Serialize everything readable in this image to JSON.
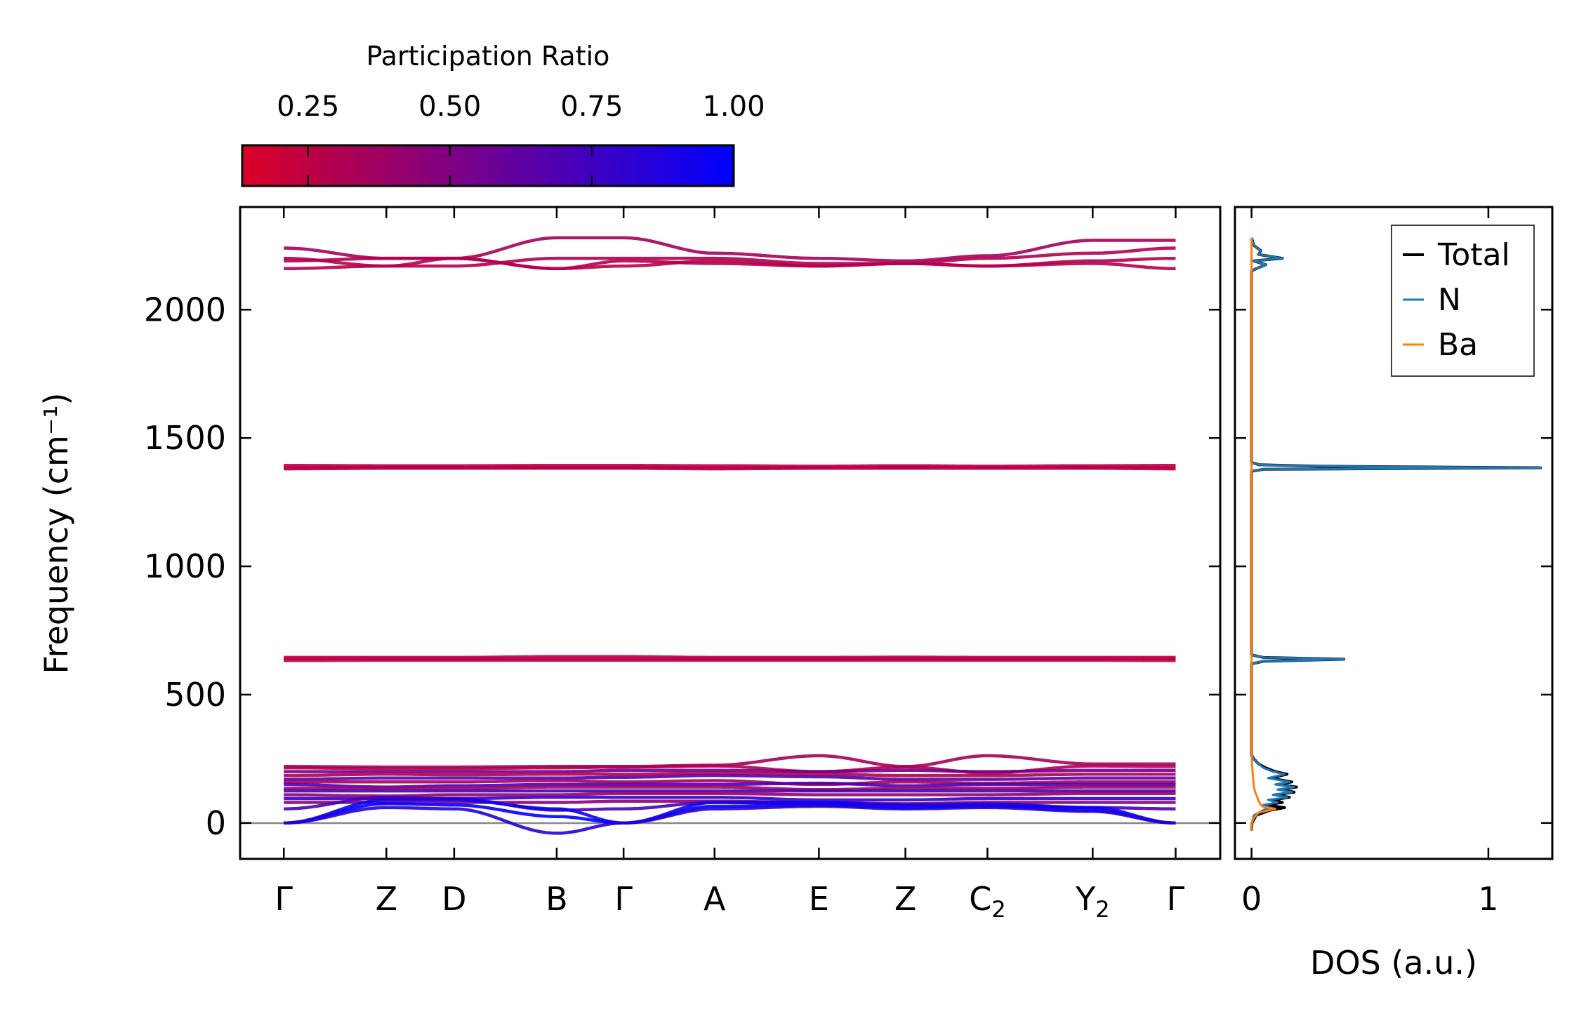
{
  "chart_data": [
    {
      "type": "line",
      "title": "",
      "xlabel": "",
      "ylabel": "Frequency (cm⁻¹)",
      "ylim": [
        -140,
        2400
      ],
      "xlim": [
        -0.049,
        1.05
      ],
      "yticks": [
        0,
        500,
        1000,
        1500,
        2000
      ],
      "ytick_labels": [
        "0",
        "500",
        "1000",
        "1500",
        "2000"
      ],
      "kpoints": [
        {
          "label": "Γ",
          "sub": "",
          "x": 0.0
        },
        {
          "label": "Z",
          "sub": "",
          "x": 0.115
        },
        {
          "label": "D",
          "sub": "",
          "x": 0.191
        },
        {
          "label": "B",
          "sub": "",
          "x": 0.306
        },
        {
          "label": "Γ",
          "sub": "",
          "x": 0.381
        },
        {
          "label": "A",
          "sub": "",
          "x": 0.483
        },
        {
          "label": "E",
          "sub": "",
          "x": 0.6
        },
        {
          "label": "Z",
          "sub": "",
          "x": 0.697
        },
        {
          "label": "C",
          "sub": "2",
          "x": 0.789
        },
        {
          "label": "Y",
          "sub": "2",
          "x": 0.907
        },
        {
          "label": "Γ",
          "sub": "",
          "x": 1.0
        }
      ],
      "colorbar": {
        "label": "Participation Ratio",
        "range": [
          0.134,
          1.0
        ],
        "ticks": [
          0.25,
          0.5,
          0.75,
          1.0
        ],
        "tick_labels": [
          "0.25",
          "0.50",
          "0.75",
          "1.00"
        ],
        "color_low": "#dc0026",
        "color_high": "#0000ff"
      },
      "bands": [
        {
          "pr": 0.35,
          "freq": [
            2240,
            2200,
            2200,
            2280,
            2280,
            2220,
            2200,
            2190,
            2210,
            2270,
            2270
          ]
        },
        {
          "pr": 0.3,
          "freq": [
            2200,
            2170,
            2170,
            2200,
            2200,
            2200,
            2180,
            2180,
            2200,
            2220,
            2240
          ]
        },
        {
          "pr": 0.3,
          "freq": [
            2190,
            2200,
            2200,
            2160,
            2190,
            2180,
            2170,
            2180,
            2170,
            2190,
            2200
          ]
        },
        {
          "pr": 0.28,
          "freq": [
            2160,
            2170,
            2200,
            2160,
            2170,
            2190,
            2170,
            2180,
            2170,
            2180,
            2160
          ]
        },
        {
          "pr": 0.25,
          "freq": [
            1393,
            1392,
            1392,
            1393,
            1393,
            1392,
            1390,
            1392,
            1390,
            1392,
            1393
          ]
        },
        {
          "pr": 0.22,
          "freq": [
            1385,
            1386,
            1386,
            1386,
            1386,
            1384,
            1385,
            1386,
            1385,
            1386,
            1385
          ]
        },
        {
          "pr": 0.3,
          "freq": [
            1380,
            1382,
            1382,
            1382,
            1382,
            1380,
            1382,
            1382,
            1382,
            1382,
            1380
          ]
        },
        {
          "pr": 0.25,
          "freq": [
            645,
            645,
            645,
            648,
            648,
            645,
            645,
            646,
            645,
            645,
            645
          ]
        },
        {
          "pr": 0.22,
          "freq": [
            640,
            640,
            640,
            640,
            640,
            640,
            640,
            640,
            640,
            640,
            640
          ]
        },
        {
          "pr": 0.3,
          "freq": [
            633,
            634,
            634,
            634,
            634,
            634,
            634,
            634,
            634,
            634,
            633
          ]
        },
        {
          "pr": 0.35,
          "freq": [
            220,
            218,
            218,
            220,
            220,
            225,
            262,
            220,
            262,
            230,
            230
          ]
        },
        {
          "pr": 0.3,
          "freq": [
            215,
            212,
            212,
            215,
            218,
            222,
            200,
            218,
            195,
            222,
            220
          ]
        },
        {
          "pr": 0.55,
          "freq": [
            200,
            200,
            200,
            200,
            205,
            205,
            200,
            205,
            200,
            205,
            205
          ]
        },
        {
          "pr": 0.3,
          "freq": [
            185,
            190,
            188,
            190,
            190,
            195,
            190,
            185,
            185,
            190,
            190
          ]
        },
        {
          "pr": 0.65,
          "freq": [
            170,
            175,
            175,
            175,
            178,
            185,
            180,
            170,
            170,
            175,
            175
          ]
        },
        {
          "pr": 0.35,
          "freq": [
            160,
            160,
            160,
            165,
            160,
            165,
            150,
            160,
            155,
            160,
            160
          ]
        },
        {
          "pr": 0.7,
          "freq": [
            150,
            140,
            145,
            150,
            150,
            150,
            155,
            145,
            150,
            150,
            150
          ]
        },
        {
          "pr": 0.35,
          "freq": [
            135,
            135,
            135,
            140,
            140,
            140,
            130,
            135,
            135,
            140,
            140
          ]
        },
        {
          "pr": 0.75,
          "freq": [
            125,
            125,
            125,
            125,
            125,
            125,
            125,
            125,
            125,
            125,
            125
          ]
        },
        {
          "pr": 0.4,
          "freq": [
            110,
            105,
            110,
            110,
            115,
            115,
            110,
            110,
            110,
            115,
            115
          ]
        },
        {
          "pr": 0.8,
          "freq": [
            95,
            95,
            95,
            100,
            100,
            100,
            90,
            90,
            95,
            95,
            95
          ]
        },
        {
          "pr": 0.45,
          "freq": [
            80,
            80,
            80,
            80,
            85,
            85,
            80,
            75,
            80,
            80,
            80
          ]
        },
        {
          "pr": 0.7,
          "freq": [
            55,
            100,
            95,
            50,
            55,
            80,
            75,
            70,
            75,
            60,
            55
          ]
        },
        {
          "pr": 0.95,
          "freq": [
            0,
            90,
            90,
            55,
            0,
            80,
            80,
            70,
            70,
            60,
            0
          ]
        },
        {
          "pr": 1.0,
          "freq": [
            0,
            75,
            70,
            25,
            0,
            65,
            70,
            60,
            65,
            50,
            0
          ]
        },
        {
          "pr": 0.85,
          "freq": [
            0,
            60,
            55,
            -40,
            0,
            55,
            65,
            55,
            60,
            45,
            0
          ]
        }
      ]
    },
    {
      "type": "line",
      "xlabel": "DOS (a.u.)",
      "ylabel": "",
      "xlim": [
        -0.07,
        1.27
      ],
      "ylim": [
        -140,
        2400
      ],
      "xticks": [
        0,
        1
      ],
      "xtick_labels": [
        "0",
        "1"
      ],
      "legend": {
        "placement": "top-right"
      },
      "series": [
        {
          "name": "Total",
          "color": "#000000",
          "points": [
            [
              -30,
              0
            ],
            [
              0,
              0.002
            ],
            [
              30,
              0.02
            ],
            [
              50,
              0.08
            ],
            [
              60,
              0.14
            ],
            [
              70,
              0.06
            ],
            [
              80,
              0.13
            ],
            [
              90,
              0.09
            ],
            [
              100,
              0.16
            ],
            [
              110,
              0.1
            ],
            [
              120,
              0.18
            ],
            [
              130,
              0.12
            ],
            [
              140,
              0.19
            ],
            [
              150,
              0.11
            ],
            [
              160,
              0.17
            ],
            [
              175,
              0.08
            ],
            [
              190,
              0.15
            ],
            [
              200,
              0.1
            ],
            [
              215,
              0.06
            ],
            [
              230,
              0.03
            ],
            [
              250,
              0.01
            ],
            [
              265,
              0
            ],
            [
              620,
              0
            ],
            [
              630,
              0.05
            ],
            [
              638,
              0.39
            ],
            [
              645,
              0.05
            ],
            [
              655,
              0
            ],
            [
              1370,
              0
            ],
            [
              1378,
              0.05
            ],
            [
              1384,
              1.22
            ],
            [
              1390,
              0.28
            ],
            [
              1396,
              0.03
            ],
            [
              1405,
              0
            ],
            [
              2150,
              0
            ],
            [
              2160,
              0.02
            ],
            [
              2175,
              0.06
            ],
            [
              2190,
              0.01
            ],
            [
              2200,
              0.13
            ],
            [
              2215,
              0.03
            ],
            [
              2230,
              0.04
            ],
            [
              2250,
              0.01
            ],
            [
              2280,
              0
            ]
          ]
        },
        {
          "name": "N",
          "color": "#1f77b4",
          "points": [
            [
              -30,
              0
            ],
            [
              0,
              0.001
            ],
            [
              30,
              0.01
            ],
            [
              50,
              0.05
            ],
            [
              60,
              0.08
            ],
            [
              70,
              0.05
            ],
            [
              80,
              0.11
            ],
            [
              90,
              0.07
            ],
            [
              100,
              0.15
            ],
            [
              110,
              0.09
            ],
            [
              120,
              0.17
            ],
            [
              130,
              0.11
            ],
            [
              140,
              0.18
            ],
            [
              150,
              0.1
            ],
            [
              160,
              0.16
            ],
            [
              175,
              0.07
            ],
            [
              190,
              0.14
            ],
            [
              200,
              0.09
            ],
            [
              215,
              0.05
            ],
            [
              230,
              0.03
            ],
            [
              250,
              0.01
            ],
            [
              265,
              0
            ],
            [
              620,
              0
            ],
            [
              630,
              0.05
            ],
            [
              638,
              0.39
            ],
            [
              645,
              0.05
            ],
            [
              655,
              0
            ],
            [
              1370,
              0
            ],
            [
              1378,
              0.05
            ],
            [
              1384,
              1.22
            ],
            [
              1390,
              0.28
            ],
            [
              1396,
              0.03
            ],
            [
              1405,
              0
            ],
            [
              2150,
              0
            ],
            [
              2160,
              0.02
            ],
            [
              2175,
              0.06
            ],
            [
              2190,
              0.01
            ],
            [
              2200,
              0.13
            ],
            [
              2215,
              0.03
            ],
            [
              2230,
              0.04
            ],
            [
              2250,
              0.01
            ],
            [
              2280,
              0
            ]
          ]
        },
        {
          "name": "Ba",
          "color": "#ff7f0e",
          "points": [
            [
              -30,
              0
            ],
            [
              0,
              0.001
            ],
            [
              20,
              0.01
            ],
            [
              40,
              0.03
            ],
            [
              55,
              0.1
            ],
            [
              62,
              0.05
            ],
            [
              70,
              0.04
            ],
            [
              85,
              0.03
            ],
            [
              100,
              0.025
            ],
            [
              120,
              0.015
            ],
            [
              140,
              0.01
            ],
            [
              160,
              0.008
            ],
            [
              190,
              0.005
            ],
            [
              230,
              0.002
            ],
            [
              270,
              0
            ],
            [
              2280,
              0
            ]
          ]
        }
      ]
    }
  ]
}
